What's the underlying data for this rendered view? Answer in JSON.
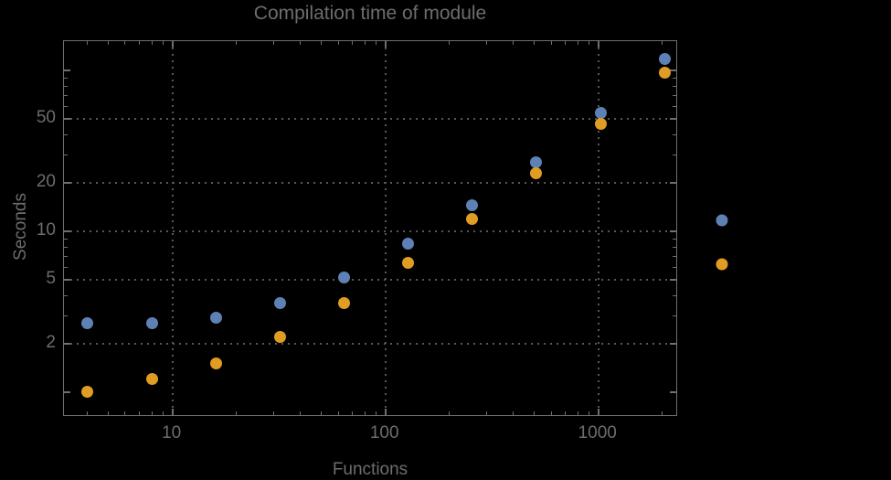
{
  "colors": {
    "background": "#000000",
    "frame": "#6f6f6f",
    "grid": "#585858",
    "text": "#6d6d6d",
    "series1_blue": "#5e81b5",
    "series2_orange": "#e19c24"
  },
  "chart_data": {
    "type": "scatter",
    "title": "Compilation time of module",
    "xlabel": "Functions",
    "ylabel": "Seconds",
    "x_scale": "log",
    "y_scale": "log",
    "grid": true,
    "xlim": [
      3.095,
      2369
    ],
    "ylim": [
      0.701,
      152.9
    ],
    "x": [
      4,
      8,
      16,
      32,
      64,
      128,
      256,
      512,
      1024,
      2048
    ],
    "series": [
      {
        "name": "series-1-blue",
        "color": "#5e81b5",
        "values": [
          2.7,
          2.7,
          2.9,
          3.6,
          5.15,
          8.4,
          14.5,
          27,
          54.5,
          119
        ]
      },
      {
        "name": "series-2-orange",
        "color": "#e19c24",
        "values": [
          1.0,
          1.2,
          1.5,
          2.2,
          3.6,
          6.35,
          12,
          23,
          47,
          97.5
        ]
      }
    ],
    "x_major_ticks": {
      "values": [
        10,
        100,
        1000
      ],
      "labels": [
        "10",
        "100",
        "1000"
      ]
    },
    "x_minor_ticks": [
      4,
      5,
      6,
      7,
      8,
      9,
      20,
      30,
      40,
      50,
      60,
      70,
      80,
      90,
      200,
      300,
      400,
      500,
      600,
      700,
      800,
      900,
      2000
    ],
    "y_major_ticks": {
      "values": [
        2,
        5,
        10,
        20,
        50
      ],
      "labels": [
        "2",
        "5",
        "10",
        "20",
        "50"
      ]
    },
    "y_unlabeled_major_ticks": [
      1,
      100
    ],
    "y_minor_ticks": [
      3,
      4,
      6,
      7,
      8,
      9,
      30,
      40,
      60,
      70,
      80,
      90
    ],
    "gridlines": {
      "x": [
        10,
        100,
        1000
      ],
      "y": [
        2,
        5,
        10,
        20,
        50
      ]
    },
    "legend": {
      "position": "right-of-plot",
      "entries": [
        {
          "label": "",
          "color": "#5e81b5"
        },
        {
          "label": "",
          "color": "#e19c24"
        }
      ]
    }
  }
}
